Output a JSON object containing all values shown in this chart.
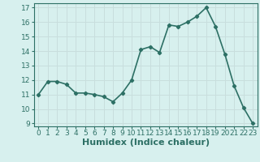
{
  "title": "",
  "xlabel": "Humidex (Indice chaleur)",
  "x": [
    0,
    1,
    2,
    3,
    4,
    5,
    6,
    7,
    8,
    9,
    10,
    11,
    12,
    13,
    14,
    15,
    16,
    17,
    18,
    19,
    20,
    21,
    22,
    23
  ],
  "y": [
    11.0,
    11.9,
    11.9,
    11.7,
    11.1,
    11.1,
    11.0,
    10.85,
    10.5,
    11.1,
    12.0,
    14.1,
    14.3,
    13.9,
    15.8,
    15.7,
    16.0,
    16.4,
    17.0,
    15.7,
    13.8,
    11.6,
    10.1,
    9.0
  ],
  "line_color": "#2d7065",
  "marker": "D",
  "marker_size": 2.2,
  "bg_color": "#d7f0ee",
  "grid_color": "#c8dedd",
  "ylim": [
    8.8,
    17.3
  ],
  "xlim": [
    -0.5,
    23.5
  ],
  "yticks": [
    9,
    10,
    11,
    12,
    13,
    14,
    15,
    16,
    17
  ],
  "xticks": [
    0,
    1,
    2,
    3,
    4,
    5,
    6,
    7,
    8,
    9,
    10,
    11,
    12,
    13,
    14,
    15,
    16,
    17,
    18,
    19,
    20,
    21,
    22,
    23
  ],
  "xlabel_fontsize": 8,
  "tick_fontsize": 6.5,
  "line_width": 1.2
}
